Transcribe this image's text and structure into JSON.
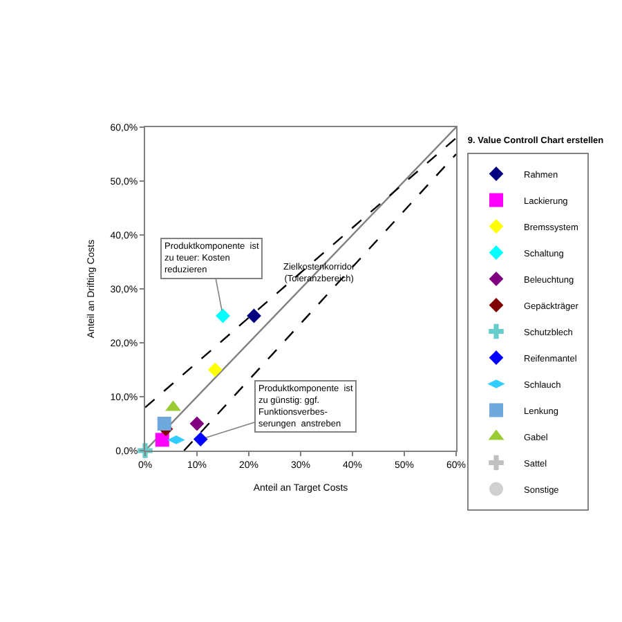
{
  "chart_data": {
    "type": "scatter",
    "title": "9. Value Controll Chart erstellen",
    "xlabel": "Anteil an Target Costs",
    "ylabel": "Anteil an Drifting Costs",
    "xlim": [
      0,
      60
    ],
    "xticks": [
      {
        "value": 0,
        "label": "0%"
      },
      {
        "value": 10,
        "label": "10%"
      },
      {
        "value": 20,
        "label": "20%"
      },
      {
        "value": 30,
        "label": "30%"
      },
      {
        "value": 40,
        "label": "40%"
      },
      {
        "value": 50,
        "label": "50%"
      },
      {
        "value": 60,
        "label": "60%"
      }
    ],
    "ylim": [
      0,
      60
    ],
    "yticks": [
      {
        "value": 0,
        "label": "0,0%"
      },
      {
        "value": 10,
        "label": "10,0%"
      },
      {
        "value": 20,
        "label": "20,0%"
      },
      {
        "value": 30,
        "label": "30,0%"
      },
      {
        "value": 40,
        "label": "40,0%"
      },
      {
        "value": 50,
        "label": "50,0%"
      },
      {
        "value": 60,
        "label": "60,0%"
      }
    ],
    "legend": "right",
    "series": [
      {
        "type": "line",
        "x": [
          0,
          60
        ],
        "values": [
          0,
          60
        ],
        "color": "#808080",
        "line_style": "solid",
        "marker": "none"
      },
      {
        "type": "line",
        "x": [
          0,
          60
        ],
        "values": [
          8,
          58
        ],
        "color": "#000000",
        "line_style": "dashed",
        "marker": "none"
      },
      {
        "type": "line",
        "x": [
          7.5,
          60
        ],
        "values": [
          0,
          55
        ],
        "color": "#000000",
        "line_style": "dashed",
        "marker": "none"
      },
      {
        "name": "Rahmen",
        "color": "#000080",
        "marker": "diamond",
        "x": [
          21
        ],
        "values": [
          25
        ]
      },
      {
        "name": "Lackierung",
        "color": "#ff00ff",
        "marker": "square",
        "x": [
          3.3
        ],
        "values": [
          2
        ]
      },
      {
        "name": "Bremssystem",
        "color": "#ffff00",
        "marker": "diamond",
        "x": [
          13.5
        ],
        "values": [
          15
        ]
      },
      {
        "name": "Schaltung",
        "color": "#00ffff",
        "marker": "diamond",
        "x": [
          15
        ],
        "values": [
          25
        ]
      },
      {
        "name": "Beleuchtung",
        "color": "#800080",
        "marker": "diamond",
        "x": [
          10
        ],
        "values": [
          5
        ]
      },
      {
        "name": "Gepäckträger",
        "color": "#800000",
        "marker": "diamond",
        "x": [
          4
        ],
        "values": [
          4
        ]
      },
      {
        "name": "Schutzblech",
        "color": "#66cccc",
        "marker": "cross",
        "x": [
          0
        ],
        "values": [
          0
        ]
      },
      {
        "name": "Reifenmantel",
        "color": "#0000ff",
        "marker": "diamond",
        "x": [
          10.7
        ],
        "values": [
          2.1
        ]
      },
      {
        "name": "Schlauch",
        "color": "#33ccff",
        "x": [
          6
        ],
        "values": [
          2
        ]
      },
      {
        "name": "Lenkung",
        "color": "#6fa8dc",
        "marker": "square",
        "x": [
          3.7
        ],
        "values": [
          5
        ]
      },
      {
        "name": "Gabel",
        "color": "#99cc33",
        "marker": "triangle",
        "x": [
          5.4
        ],
        "values": [
          8
        ]
      },
      {
        "name": "Sattel",
        "color": "#c0c0c0",
        "marker": "cross",
        "x": [
          null
        ],
        "values": [
          null
        ]
      },
      {
        "name": "Sonstige",
        "color": "#d0d0d0",
        "marker": "circle",
        "x": [
          null
        ],
        "values": [
          null
        ]
      }
    ],
    "annotations": [
      {
        "text": "Produktkomponente  ist\nzu teuer: Kosten\nreduzieren",
        "x": 15,
        "y": 25
      },
      "Zielkostenkorridor\n(Toleranzbereich)",
      {
        "text": "Produktkomponente  ist\nzu günstig: ggf.\nFunktionsverbes-\nserungen  anstreben",
        "x": 10.7,
        "y": 2.1
      }
    ]
  }
}
